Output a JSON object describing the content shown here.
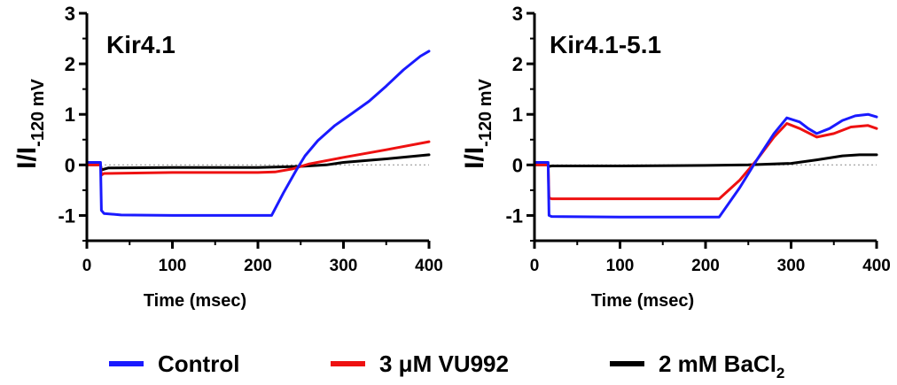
{
  "colors": {
    "control": "#1a1aff",
    "vu992": "#ee1111",
    "bacl2": "#000000",
    "zero_line": "#999999"
  },
  "legend": {
    "control": "Control",
    "vu992": "3 μM VU992",
    "bacl2_main": "2 mM BaCl",
    "bacl2_sub": "2"
  },
  "axes": {
    "xlabel": "Time (msec)",
    "ylabel_main": "I/I",
    "ylabel_sub": "-120 mV"
  },
  "chart_data": [
    {
      "type": "line",
      "title": "Kir4.1",
      "xlabel": "Time (msec)",
      "ylabel": "I/I-120 mV",
      "xlim": [
        0,
        400
      ],
      "ylim": [
        -1.5,
        3
      ],
      "xticks": [
        0,
        100,
        200,
        300,
        400
      ],
      "yticks": [
        -1,
        0,
        1,
        2,
        3
      ],
      "zero_reference_line": true,
      "grid": false,
      "legend_position": "bottom",
      "series": [
        {
          "name": "Control",
          "key": "control",
          "x": [
            0,
            16,
            17,
            20,
            40,
            100,
            150,
            200,
            216,
            230,
            245,
            255,
            270,
            290,
            310,
            330,
            350,
            370,
            390,
            400
          ],
          "y": [
            0.05,
            0.05,
            -0.9,
            -0.96,
            -0.99,
            -1.0,
            -1.0,
            -1.0,
            -1.0,
            -0.55,
            -0.1,
            0.18,
            0.48,
            0.78,
            1.02,
            1.26,
            1.56,
            1.88,
            2.15,
            2.25
          ]
        },
        {
          "name": "3 μM VU992",
          "key": "vu992",
          "x": [
            0,
            16,
            17,
            20,
            100,
            200,
            220,
            240,
            260,
            300,
            350,
            400
          ],
          "y": [
            0.0,
            0.0,
            -0.2,
            -0.17,
            -0.15,
            -0.15,
            -0.14,
            -0.08,
            0.02,
            0.15,
            0.3,
            0.46
          ]
        },
        {
          "name": "2 mM BaCl2",
          "key": "bacl2",
          "x": [
            0,
            16,
            17,
            25,
            100,
            200,
            250,
            280,
            300,
            350,
            400
          ],
          "y": [
            0.0,
            0.0,
            -0.1,
            -0.06,
            -0.05,
            -0.05,
            -0.03,
            0.0,
            0.05,
            0.12,
            0.2
          ]
        }
      ]
    },
    {
      "type": "line",
      "title": "Kir4.1-5.1",
      "xlabel": "Time (msec)",
      "ylabel": "I/I-120 mV",
      "xlim": [
        0,
        400
      ],
      "ylim": [
        -1.5,
        3
      ],
      "xticks": [
        0,
        100,
        200,
        300,
        400
      ],
      "yticks": [
        -1,
        0,
        1,
        2,
        3
      ],
      "zero_reference_line": true,
      "grid": false,
      "legend_position": "bottom",
      "series": [
        {
          "name": "Control",
          "key": "control",
          "x": [
            0,
            16,
            17,
            20,
            100,
            200,
            216,
            240,
            260,
            280,
            295,
            310,
            320,
            330,
            345,
            360,
            375,
            390,
            400
          ],
          "y": [
            0.05,
            0.05,
            -1.0,
            -1.02,
            -1.03,
            -1.03,
            -1.03,
            -0.45,
            0.1,
            0.62,
            0.93,
            0.85,
            0.72,
            0.62,
            0.72,
            0.88,
            0.97,
            1.0,
            0.95
          ]
        },
        {
          "name": "3 μM VU992",
          "key": "vu992",
          "x": [
            0,
            16,
            17,
            20,
            100,
            200,
            216,
            240,
            260,
            280,
            295,
            310,
            330,
            350,
            370,
            390,
            400
          ],
          "y": [
            0.0,
            0.0,
            -0.65,
            -0.67,
            -0.67,
            -0.67,
            -0.67,
            -0.3,
            0.1,
            0.55,
            0.82,
            0.72,
            0.55,
            0.62,
            0.75,
            0.78,
            0.72
          ]
        },
        {
          "name": "2 mM BaCl2",
          "key": "bacl2",
          "x": [
            0,
            16,
            17,
            20,
            100,
            200,
            250,
            300,
            330,
            360,
            380,
            400
          ],
          "y": [
            0.0,
            0.0,
            -0.03,
            -0.02,
            -0.02,
            -0.01,
            0.0,
            0.03,
            0.1,
            0.18,
            0.2,
            0.2
          ]
        }
      ]
    }
  ]
}
